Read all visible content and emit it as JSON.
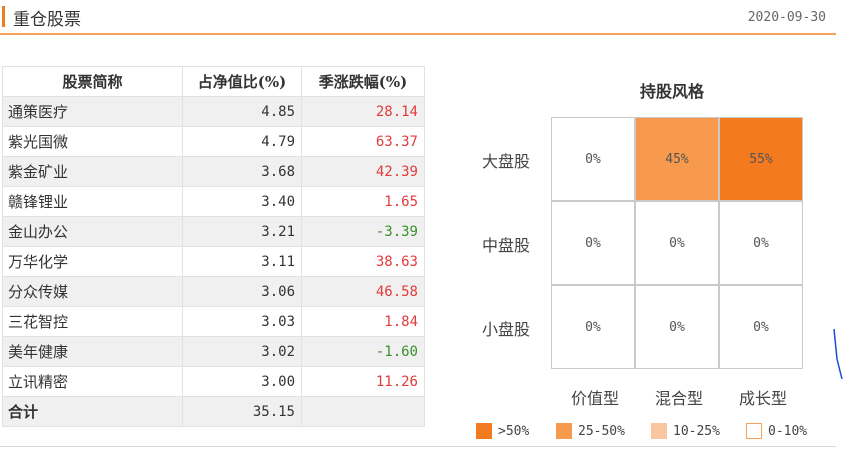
{
  "header": {
    "title": "重仓股票",
    "date": "2020-09-30"
  },
  "table": {
    "columns": [
      "股票简称",
      "占净值比(%)",
      "季涨跌幅(%)"
    ],
    "rows": [
      {
        "name": "通策医疗",
        "ratio": "4.85",
        "change": "28.14",
        "dir": "up"
      },
      {
        "name": "紫光国微",
        "ratio": "4.79",
        "change": "63.37",
        "dir": "up"
      },
      {
        "name": "紫金矿业",
        "ratio": "3.68",
        "change": "42.39",
        "dir": "up"
      },
      {
        "name": "赣锋锂业",
        "ratio": "3.40",
        "change": "1.65",
        "dir": "up"
      },
      {
        "name": "金山办公",
        "ratio": "3.21",
        "change": "-3.39",
        "dir": "down"
      },
      {
        "name": "万华化学",
        "ratio": "3.11",
        "change": "38.63",
        "dir": "up"
      },
      {
        "name": "分众传媒",
        "ratio": "3.06",
        "change": "46.58",
        "dir": "up"
      },
      {
        "name": "三花智控",
        "ratio": "3.03",
        "change": "1.84",
        "dir": "up"
      },
      {
        "name": "美年健康",
        "ratio": "3.02",
        "change": "-1.60",
        "dir": "down"
      },
      {
        "name": "立讯精密",
        "ratio": "3.00",
        "change": "11.26",
        "dir": "up"
      }
    ],
    "total": {
      "label": "合计",
      "ratio": "35.15"
    }
  },
  "style_box": {
    "title": "持股风格",
    "row_labels": [
      "大盘股",
      "中盘股",
      "小盘股"
    ],
    "col_labels": [
      "价值型",
      "混合型",
      "成长型"
    ],
    "cells": [
      [
        "0%",
        "45%",
        "55%"
      ],
      [
        "0%",
        "0%",
        "0%"
      ],
      [
        "0%",
        "0%",
        "0%"
      ]
    ],
    "legend": [
      {
        "label": ">50%",
        "color": "#f47a1f"
      },
      {
        "label": "25-50%",
        "color": "#f79a4d"
      },
      {
        "label": "10-25%",
        "color": "#f9c6a0"
      },
      {
        "label": "0-10%",
        "color": "#ffffff"
      }
    ]
  },
  "colors": {
    "accent": "#f07c22",
    "up": "#e33b3b",
    "down": "#3a8f2a"
  }
}
